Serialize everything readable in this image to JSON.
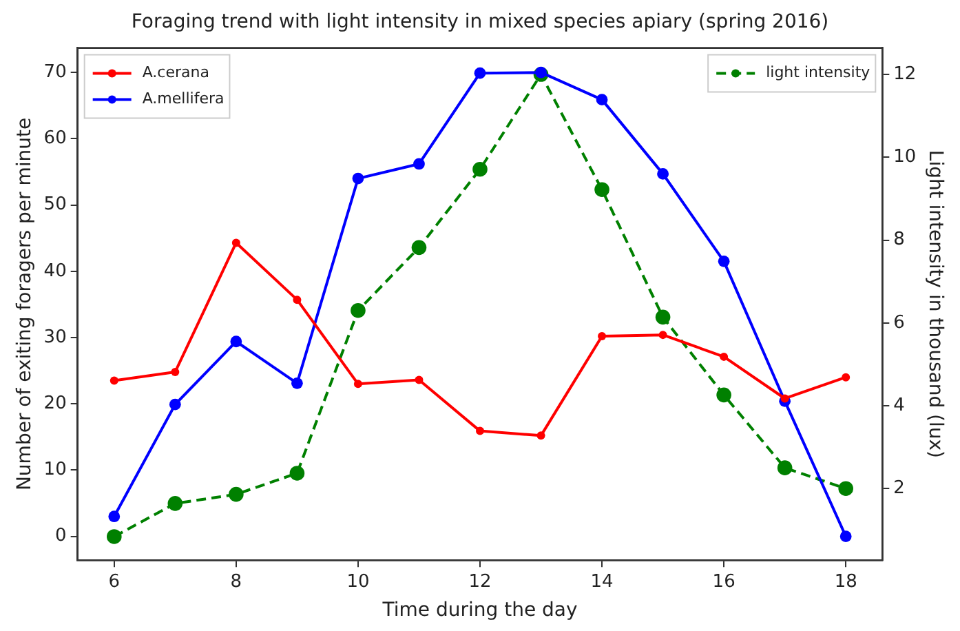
{
  "chart_data": {
    "type": "line",
    "title": "Foraging trend with light intensity in mixed species apiary (spring 2016)",
    "xlabel": "Time during the day",
    "ylabel": "Number of exiting foragers per minute",
    "y2label": "Light intensity in thousand (lux)",
    "x": [
      6,
      7,
      8,
      9,
      10,
      11,
      12,
      13,
      14,
      15,
      16,
      17,
      18
    ],
    "xlim": [
      5.4,
      18.6
    ],
    "xticks": [
      6,
      8,
      10,
      12,
      14,
      16,
      18
    ],
    "ylim": [
      -3.6,
      73.7
    ],
    "yticks": [
      0,
      10,
      20,
      30,
      40,
      50,
      60,
      70
    ],
    "y2lim": [
      0.27,
      12.64
    ],
    "y2ticks": [
      2,
      4,
      6,
      8,
      10,
      12
    ],
    "grid": false,
    "legend": "top left",
    "marker": "circle",
    "line_style": "solid",
    "series": [
      {
        "name": "A.cerana",
        "color": "#ff0000",
        "values": [
          23.5,
          24.8,
          44.3,
          35.7,
          23.0,
          23.6,
          15.9,
          15.2,
          30.2,
          30.4,
          27.1,
          20.8,
          24.0
        ]
      },
      {
        "name": "A.mellifera",
        "color": "#0000ff",
        "values": [
          3.0,
          19.9,
          29.4,
          23.1,
          54.0,
          56.2,
          69.9,
          70.0,
          65.9,
          54.7,
          41.5,
          20.4,
          0.0
        ]
      },
      {
        "name": "light intensity",
        "color": "#008000",
        "axis": "y2",
        "line_style": "dashed",
        "values": [
          0.84,
          1.64,
          1.86,
          2.37,
          6.3,
          7.82,
          9.71,
          12.0,
          9.22,
          6.14,
          4.26,
          2.5,
          2.0
        ]
      }
    ]
  }
}
